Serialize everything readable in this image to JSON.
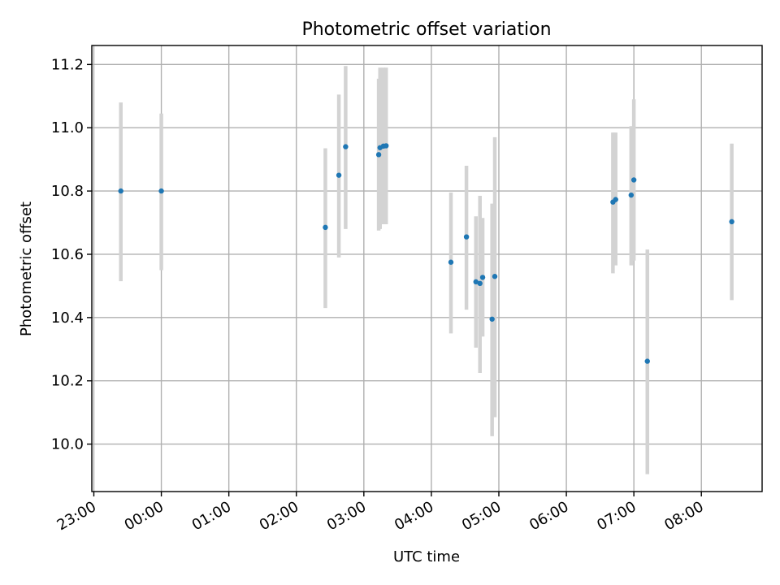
{
  "chart_data": {
    "type": "scatter",
    "title": "Photometric offset variation",
    "xlabel": "UTC time",
    "ylabel": "Photometric offset",
    "xlim_hours": [
      -1.03,
      8.9
    ],
    "ylim": [
      9.85,
      11.26
    ],
    "grid": true,
    "legend": "none",
    "x_ticks": [
      {
        "value": -1,
        "label": "23:00"
      },
      {
        "value": 0,
        "label": "00:00"
      },
      {
        "value": 1,
        "label": "01:00"
      },
      {
        "value": 2,
        "label": "02:00"
      },
      {
        "value": 3,
        "label": "03:00"
      },
      {
        "value": 4,
        "label": "04:00"
      },
      {
        "value": 5,
        "label": "05:00"
      },
      {
        "value": 6,
        "label": "06:00"
      },
      {
        "value": 7,
        "label": "07:00"
      },
      {
        "value": 8,
        "label": "08:00"
      }
    ],
    "y_ticks": [
      {
        "value": 10.0,
        "label": "10.0"
      },
      {
        "value": 10.2,
        "label": "10.2"
      },
      {
        "value": 10.4,
        "label": "10.4"
      },
      {
        "value": 10.6,
        "label": "10.6"
      },
      {
        "value": 10.8,
        "label": "10.8"
      },
      {
        "value": 11.0,
        "label": "11.0"
      },
      {
        "value": 11.2,
        "label": "11.2"
      }
    ],
    "series": [
      {
        "marker_color": "#1f77b4",
        "error_color": "#d3d3d3",
        "points": [
          {
            "x": -0.6,
            "y": 10.8,
            "ylow": 10.515,
            "yhigh": 11.08
          },
          {
            "x": 0.0,
            "y": 10.8,
            "ylow": 10.55,
            "yhigh": 11.045
          },
          {
            "x": 2.43,
            "y": 10.685,
            "ylow": 10.43,
            "yhigh": 10.935
          },
          {
            "x": 2.63,
            "y": 10.85,
            "ylow": 10.59,
            "yhigh": 11.105
          },
          {
            "x": 2.73,
            "y": 10.94,
            "ylow": 10.68,
            "yhigh": 11.195
          },
          {
            "x": 3.22,
            "y": 10.915,
            "ylow": 10.675,
            "yhigh": 11.155
          },
          {
            "x": 3.24,
            "y": 10.937,
            "ylow": 10.68,
            "yhigh": 11.19
          },
          {
            "x": 3.29,
            "y": 10.942,
            "ylow": 10.695,
            "yhigh": 11.19
          },
          {
            "x": 3.33,
            "y": 10.943,
            "ylow": 10.695,
            "yhigh": 11.19
          },
          {
            "x": 4.29,
            "y": 10.575,
            "ylow": 10.35,
            "yhigh": 10.795
          },
          {
            "x": 4.52,
            "y": 10.655,
            "ylow": 10.425,
            "yhigh": 10.88
          },
          {
            "x": 4.66,
            "y": 10.513,
            "ylow": 10.305,
            "yhigh": 10.72
          },
          {
            "x": 4.72,
            "y": 10.508,
            "ylow": 10.225,
            "yhigh": 10.785
          },
          {
            "x": 4.76,
            "y": 10.527,
            "ylow": 10.34,
            "yhigh": 10.715
          },
          {
            "x": 4.9,
            "y": 10.395,
            "ylow": 10.025,
            "yhigh": 10.76
          },
          {
            "x": 4.94,
            "y": 10.53,
            "ylow": 10.085,
            "yhigh": 10.97
          },
          {
            "x": 6.69,
            "y": 10.765,
            "ylow": 10.54,
            "yhigh": 10.985
          },
          {
            "x": 6.73,
            "y": 10.773,
            "ylow": 10.565,
            "yhigh": 10.985
          },
          {
            "x": 6.96,
            "y": 10.787,
            "ylow": 10.565,
            "yhigh": 11.005
          },
          {
            "x": 7.0,
            "y": 10.835,
            "ylow": 10.58,
            "yhigh": 11.09
          },
          {
            "x": 7.2,
            "y": 10.262,
            "ylow": 9.905,
            "yhigh": 10.615
          },
          {
            "x": 8.45,
            "y": 10.703,
            "ylow": 10.455,
            "yhigh": 10.95
          }
        ]
      }
    ]
  }
}
